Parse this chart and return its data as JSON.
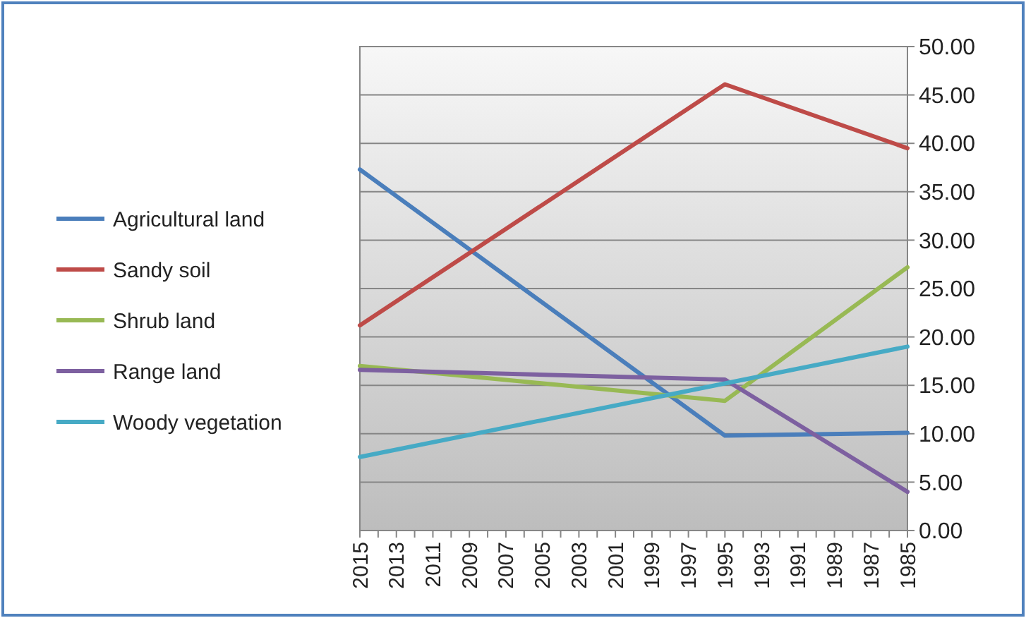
{
  "chart_data": {
    "type": "line",
    "x": [
      2015,
      1995,
      1985
    ],
    "xlim": [
      2015,
      1985
    ],
    "xticks": [
      2015,
      {
        "value": 2014,
        "label": null
      },
      2013,
      {
        "value": 2012,
        "label": null
      },
      2011,
      {
        "value": 2010,
        "label": null
      },
      2009,
      {
        "value": 2008,
        "label": null
      },
      2007,
      {
        "value": 2006,
        "label": null
      },
      2005,
      {
        "value": 2004,
        "label": null
      },
      2003,
      {
        "value": 2002,
        "label": null
      },
      2001,
      {
        "value": 2000,
        "label": null
      },
      1999,
      {
        "value": 1998,
        "label": null
      },
      1997,
      {
        "value": 1996,
        "label": null
      },
      1995,
      {
        "value": 1994,
        "label": null
      },
      1993,
      {
        "value": 1992,
        "label": null
      },
      1991,
      {
        "value": 1990,
        "label": null
      },
      1989,
      {
        "value": 1988,
        "label": null
      },
      1987,
      {
        "value": 1986,
        "label": null
      },
      1985
    ],
    "ylim": [
      0,
      50
    ],
    "yticks": [
      {
        "value": 0,
        "label": "0.00"
      },
      {
        "value": 5,
        "label": "5.00"
      },
      {
        "value": 10,
        "label": "10.00"
      },
      {
        "value": 15,
        "label": "15.00"
      },
      {
        "value": 20,
        "label": "20.00"
      },
      {
        "value": 25,
        "label": "25.00"
      },
      {
        "value": 30,
        "label": "30.00"
      },
      {
        "value": 35,
        "label": "35.00"
      },
      {
        "value": 40,
        "label": "40.00"
      },
      {
        "value": 45,
        "label": "45.00"
      },
      {
        "value": 50,
        "label": "50.00"
      }
    ],
    "grid": "y",
    "legend": "left",
    "marker": "none",
    "line_style": "solid",
    "series": [
      {
        "name": "Agricultural land",
        "color": "#4a7ebb",
        "values": [
          37.3,
          9.8,
          10.1
        ]
      },
      {
        "name": "Sandy soil",
        "color": "#be4b48",
        "values": [
          21.2,
          46.1,
          39.5
        ]
      },
      {
        "name": "Shrub land",
        "color": "#98b954",
        "values": [
          17.0,
          13.4,
          27.2
        ]
      },
      {
        "name": "Range land",
        "color": "#7d60a0",
        "values": [
          16.6,
          15.6,
          4.0
        ]
      },
      {
        "name": "Woody vegetation",
        "color": "#46aac5",
        "values": [
          7.6,
          15.2,
          19.0
        ]
      }
    ]
  }
}
